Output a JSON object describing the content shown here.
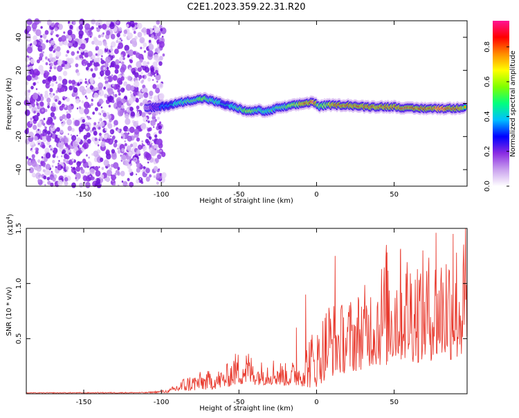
{
  "title": "C2E1.2023.359.22.31.R20",
  "chart_data": [
    {
      "type": "heatmap",
      "title": "C2E1.2023.359.22.31.R20",
      "xlabel": "Height of straight line (km)",
      "ylabel": "Frequency (Hz)",
      "xlim": [
        -187,
        97
      ],
      "ylim": [
        -50,
        50
      ],
      "x_ticks": [
        -150,
        -100,
        -50,
        0,
        50
      ],
      "y_ticks": [
        40,
        20,
        0,
        -20,
        -40
      ],
      "noise_region_x": [
        -187,
        -100
      ],
      "ridge": {
        "x": [
          -110,
          -100,
          -90,
          -80,
          -72,
          -65,
          -58,
          -50,
          -44,
          -38,
          -32,
          -26,
          -20,
          -14,
          -8,
          -2,
          2,
          6,
          12,
          20,
          30,
          40,
          50,
          60,
          70,
          80,
          90,
          96
        ],
        "freq": [
          -3,
          -2,
          0,
          2,
          3,
          1,
          -1,
          -3,
          -5,
          -4,
          -5,
          -3,
          -2,
          -1,
          0,
          1,
          -2,
          -1,
          -1,
          -1,
          -2,
          -2,
          -2,
          -3,
          -3,
          -3,
          -3,
          -2
        ],
        "amplitude": [
          0.15,
          0.35,
          0.5,
          0.6,
          0.62,
          0.5,
          0.45,
          0.55,
          0.7,
          0.55,
          0.5,
          0.55,
          0.6,
          0.7,
          0.8,
          0.9,
          0.6,
          0.7,
          0.85,
          0.85,
          0.85,
          0.85,
          0.85,
          0.88,
          0.85,
          0.9,
          0.85,
          0.7
        ]
      },
      "colorbar": {
        "label": "Normalized spectral amplitude",
        "range": [
          0,
          0.95
        ],
        "ticks": [
          "0.0",
          "0.2",
          "0.4",
          "0.6",
          "0.8"
        ],
        "colors": [
          "#ffffff",
          "#c9a0ee",
          "#8a2be2",
          "#0000ff",
          "#00bfff",
          "#00ff7f",
          "#7fff00",
          "#ffff00",
          "#ff8c00",
          "#ff0000",
          "#ff1493"
        ]
      }
    },
    {
      "type": "line",
      "xlabel": "Height of straight line (km)",
      "ylabel": "SNR (10 * v/v)",
      "y_exponent_label": "(x10",
      "y_exponent_power": "4",
      "y_exponent_close": ")",
      "xlim": [
        -187,
        97
      ],
      "ylim": [
        0,
        1.5
      ],
      "x_ticks": [
        -150,
        -100,
        -50,
        0,
        50
      ],
      "y_ticks": [
        "0.5",
        "1.0",
        "1.5"
      ],
      "color": "#e83a2e",
      "envelope": {
        "x": [
          -187,
          -110,
          -95,
          -85,
          -75,
          -60,
          -52,
          -45,
          -38,
          -30,
          -20,
          -10,
          -5,
          0,
          8,
          15,
          25,
          35,
          45,
          55,
          65,
          75,
          85,
          97
        ],
        "low": [
          0.005,
          0.006,
          0.01,
          0.02,
          0.03,
          0.05,
          0.08,
          0.08,
          0.08,
          0.08,
          0.07,
          0.07,
          0.05,
          0.06,
          0.15,
          0.18,
          0.2,
          0.25,
          0.25,
          0.3,
          0.28,
          0.3,
          0.3,
          0.3
        ],
        "high": [
          0.012,
          0.015,
          0.04,
          0.16,
          0.2,
          0.23,
          0.38,
          0.42,
          0.28,
          0.35,
          0.28,
          0.32,
          0.58,
          0.58,
          0.9,
          0.82,
          0.92,
          1.05,
          1.32,
          1.35,
          1.32,
          1.28,
          1.45,
          1.4
        ]
      },
      "spikes": [
        [
          -13,
          0.6
        ],
        [
          -7,
          0.9
        ],
        [
          12,
          1.25
        ],
        [
          45,
          1.35
        ],
        [
          54,
          1.3
        ],
        [
          77,
          1.46
        ],
        [
          88,
          1.45
        ],
        [
          96,
          1.5
        ]
      ]
    }
  ]
}
